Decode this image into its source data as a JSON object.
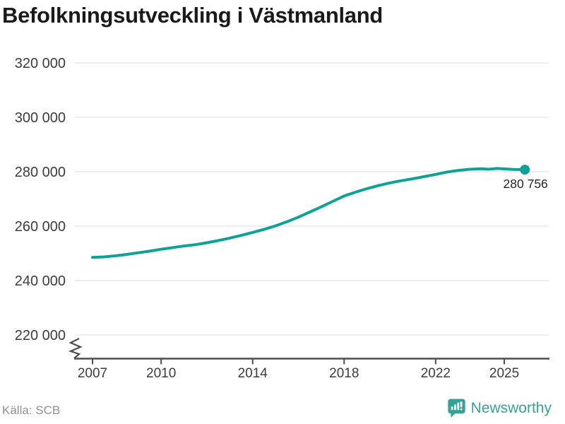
{
  "title": "Befolkningsutveckling i Västmanland",
  "source": "Källa: SCB",
  "footer": {
    "brand": "Newsworthy"
  },
  "colors": {
    "line": "#0ca295",
    "marker": "#0ca295",
    "grid": "#e8e8e8",
    "axis": "#4d4d4d",
    "tick_label": "#3c3c3c",
    "value_label": "#252525",
    "brand_teal": "#35a29a"
  },
  "chart_data": {
    "type": "line",
    "title": "Befolkningsutveckling i Västmanland",
    "xlabel": "",
    "ylabel": "",
    "grid": "horizontal",
    "legend": "none",
    "y_axis_break": true,
    "xlim": [
      2006.2,
      2027.0
    ],
    "ylim": [
      220000,
      320000
    ],
    "xticks": [
      2007,
      2010,
      2014,
      2018,
      2022,
      2025
    ],
    "yticks": [
      220000,
      240000,
      260000,
      280000,
      300000,
      320000
    ],
    "x": [
      2007,
      2007.5,
      2008,
      2008.5,
      2009,
      2009.5,
      2010,
      2010.5,
      2011,
      2011.5,
      2012,
      2012.5,
      2013,
      2013.5,
      2014,
      2014.5,
      2015,
      2015.5,
      2016,
      2016.5,
      2017,
      2017.5,
      2018,
      2018.5,
      2019,
      2019.5,
      2020,
      2020.5,
      2021,
      2021.5,
      2022,
      2022.5,
      2023,
      2023.5,
      2024,
      2024.3,
      2024.7,
      2025,
      2025.4,
      2025.9
    ],
    "y": [
      248500,
      248700,
      249100,
      249600,
      250200,
      250800,
      251500,
      252100,
      252700,
      253200,
      253900,
      254700,
      255600,
      256600,
      257700,
      258800,
      260100,
      261600,
      263300,
      265200,
      267100,
      269100,
      271100,
      272500,
      273800,
      274900,
      275900,
      276700,
      277400,
      278200,
      279000,
      279900,
      280500,
      280900,
      281100,
      280900,
      281200,
      281050,
      280850,
      280756
    ],
    "last_value": 280756,
    "last_value_label": "280 756"
  }
}
